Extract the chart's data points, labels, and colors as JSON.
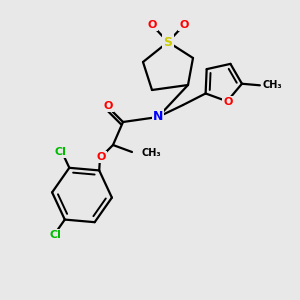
{
  "bg_color": "#e8e8e8",
  "bond_color": "#000000",
  "atom_colors": {
    "S": "#cccc00",
    "O": "#ff0000",
    "N": "#0000ff",
    "Cl": "#00bb00",
    "C": "#000000"
  },
  "figsize": [
    3.0,
    3.0
  ],
  "dpi": 100
}
